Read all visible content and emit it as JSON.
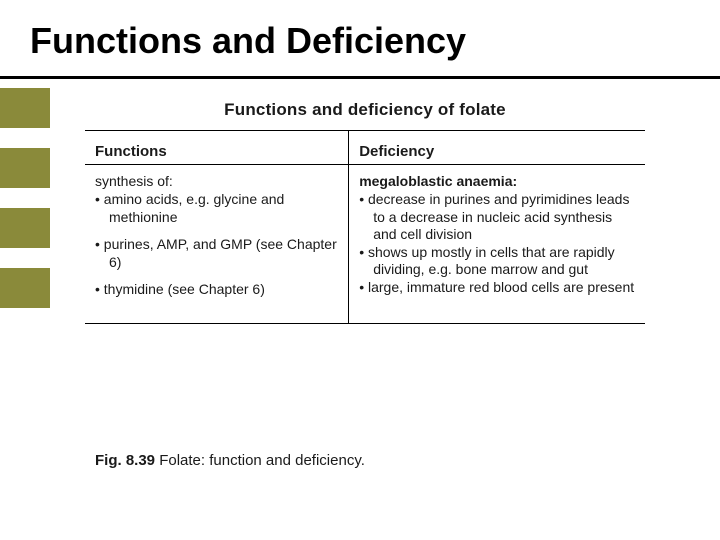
{
  "title": "Functions and Deficiency",
  "colors": {
    "olive": "#8a8a3a",
    "text": "#1a1a1a",
    "rule": "#000000",
    "bg": "#ffffff"
  },
  "scan": {
    "heading": "Functions and deficiency of folate",
    "columns": {
      "left": {
        "header": "Functions",
        "lead": "synthesis of:",
        "groups": [
          [
            "amino acids, e.g. glycine and methionine"
          ],
          [
            "purines, AMP, and GMP (see Chapter 6)"
          ],
          [
            "thymidine (see Chapter 6)"
          ]
        ]
      },
      "right": {
        "header": "Deficiency",
        "lead": "megaloblastic anaemia:",
        "items": [
          "decrease in purines and pyrimidines leads to a decrease in nucleic acid synthesis and cell division",
          "shows up mostly in cells that are rapidly dividing, e.g. bone marrow and gut",
          "large, immature red blood cells are present"
        ]
      }
    }
  },
  "caption": {
    "fig": "Fig. 8.39",
    "text": "Folate: function and deficiency."
  }
}
